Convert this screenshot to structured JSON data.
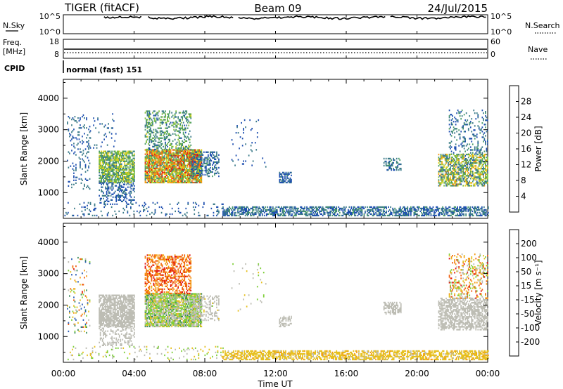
{
  "header": {
    "title": "TIGER (fitACF)",
    "beam": "Beam 09",
    "date": "24/Jul/2015"
  },
  "noise_panel": {
    "left_label": "N.Sky",
    "right_label": "N.Search",
    "left_ticks": [
      "10^5",
      "10^0"
    ],
    "right_ticks": [
      "10^5",
      "10^0"
    ]
  },
  "freq_panel": {
    "left_label_1": "Freq.",
    "left_label_2": "[MHz]",
    "right_label": "Nave",
    "left_ticks": [
      "18",
      "8"
    ],
    "right_ticks": [
      "60",
      "0"
    ]
  },
  "cpid": {
    "label": "CPID",
    "value": "normal (fast) 151"
  },
  "colors": {
    "power": [
      "#0a1be0",
      "#1e4fb0",
      "#3a7a88",
      "#4a9a6a",
      "#7fbe3a",
      "#e0d020",
      "#f59a10",
      "#f06010",
      "#e01010"
    ],
    "velocity": [
      "#e01010",
      "#f06010",
      "#f59a10",
      "#e6c020",
      "#bdbdb4",
      "#7fcf3a",
      "#3a8a5a",
      "#2a5cb4",
      "#1428c8"
    ]
  },
  "chart_data": [
    {
      "type": "heatmap",
      "name": "power",
      "ylabel": "Slant Range [km]",
      "xlim": [
        0,
        24
      ],
      "ylim": [
        180,
        4600
      ],
      "yticks": [
        "1000",
        "2000",
        "3000",
        "4000"
      ],
      "colorbar_label": "Power [dB]",
      "colorbar_ticks": [
        "4",
        "8",
        "12",
        "16",
        "20",
        "24",
        "28"
      ],
      "colorbar_range": [
        0,
        32
      ],
      "regions": [
        {
          "t": [
            0.2,
            1.5
          ],
          "r": [
            1100,
            3500
          ],
          "density": 0.12,
          "value": [
            4,
            10
          ]
        },
        {
          "t": [
            2.0,
            4.0
          ],
          "r": [
            1300,
            2300
          ],
          "density": 0.75,
          "value": [
            8,
            20
          ]
        },
        {
          "t": [
            2.0,
            4.0
          ],
          "r": [
            700,
            1300
          ],
          "density": 0.35,
          "value": [
            4,
            10
          ]
        },
        {
          "t": [
            1.5,
            3.0
          ],
          "r": [
            2400,
            3500
          ],
          "density": 0.06,
          "value": [
            4,
            10
          ]
        },
        {
          "t": [
            4.6,
            7.8
          ],
          "r": [
            1300,
            2350
          ],
          "density": 0.85,
          "value": [
            10,
            30
          ]
        },
        {
          "t": [
            4.6,
            7.2
          ],
          "r": [
            2350,
            3600
          ],
          "density": 0.35,
          "value": [
            6,
            18
          ]
        },
        {
          "t": [
            7.2,
            8.8
          ],
          "r": [
            1500,
            2300
          ],
          "density": 0.4,
          "value": [
            4,
            12
          ]
        },
        {
          "t": [
            9.5,
            11.5
          ],
          "r": [
            1800,
            3300
          ],
          "density": 0.03,
          "value": [
            4,
            8
          ]
        },
        {
          "t": [
            12.2,
            12.9
          ],
          "r": [
            1300,
            1650
          ],
          "density": 0.5,
          "value": [
            4,
            10
          ]
        },
        {
          "t": [
            18.1,
            19.1
          ],
          "r": [
            1700,
            2100
          ],
          "density": 0.45,
          "value": [
            6,
            12
          ]
        },
        {
          "t": [
            21.2,
            24.0
          ],
          "r": [
            1200,
            2200
          ],
          "density": 0.6,
          "value": [
            6,
            24
          ]
        },
        {
          "t": [
            21.8,
            24.0
          ],
          "r": [
            2200,
            3600
          ],
          "density": 0.18,
          "value": [
            4,
            12
          ]
        },
        {
          "t": [
            0.0,
            9.0
          ],
          "r": [
            250,
            700
          ],
          "density": 0.1,
          "value": [
            4,
            10
          ]
        },
        {
          "t": [
            9.0,
            24.0
          ],
          "r": [
            250,
            550
          ],
          "density": 0.55,
          "value": [
            4,
            12
          ]
        }
      ]
    },
    {
      "type": "heatmap",
      "name": "velocity",
      "ylabel": "Slant Range [km]",
      "xlabel": "Time UT",
      "xlim": [
        0,
        24
      ],
      "ylim": [
        180,
        4600
      ],
      "xticks": [
        "00:00",
        "04:00",
        "08:00",
        "12:00",
        "16:00",
        "20:00",
        "00:00"
      ],
      "yticks": [
        "1000",
        "2000",
        "3000",
        "4000"
      ],
      "colorbar_label": "Velocity [m s⁻¹]",
      "colorbar_ticks": [
        "200",
        "100",
        "50",
        "15",
        "-15",
        "-50",
        "-100",
        "-200"
      ],
      "colorbar_range": [
        -250,
        250
      ],
      "regions": [
        {
          "t": [
            0.2,
            1.5
          ],
          "r": [
            1100,
            3500
          ],
          "density": 0.1,
          "value": [
            -200,
            200
          ]
        },
        {
          "t": [
            2.0,
            4.0
          ],
          "r": [
            1300,
            2300
          ],
          "density": 0.75,
          "value": [
            -15,
            15
          ]
        },
        {
          "t": [
            2.0,
            4.0
          ],
          "r": [
            700,
            1300
          ],
          "density": 0.3,
          "value": [
            -15,
            15
          ]
        },
        {
          "t": [
            4.6,
            7.8
          ],
          "r": [
            1300,
            2350
          ],
          "density": 0.85,
          "value": [
            -50,
            100
          ]
        },
        {
          "t": [
            4.6,
            7.2
          ],
          "r": [
            2350,
            3600
          ],
          "density": 0.45,
          "value": [
            -220,
            -80
          ]
        },
        {
          "t": [
            7.2,
            8.8
          ],
          "r": [
            1500,
            2300
          ],
          "density": 0.35,
          "value": [
            -30,
            30
          ]
        },
        {
          "t": [
            9.5,
            11.5
          ],
          "r": [
            1800,
            3300
          ],
          "density": 0.03,
          "value": [
            -50,
            50
          ]
        },
        {
          "t": [
            12.2,
            12.9
          ],
          "r": [
            1300,
            1650
          ],
          "density": 0.5,
          "value": [
            -20,
            20
          ]
        },
        {
          "t": [
            18.1,
            19.1
          ],
          "r": [
            1700,
            2100
          ],
          "density": 0.45,
          "value": [
            -20,
            20
          ]
        },
        {
          "t": [
            21.2,
            24.0
          ],
          "r": [
            1200,
            2200
          ],
          "density": 0.6,
          "value": [
            -20,
            20
          ]
        },
        {
          "t": [
            21.8,
            24.0
          ],
          "r": [
            2200,
            3600
          ],
          "density": 0.25,
          "value": [
            -220,
            80
          ]
        },
        {
          "t": [
            0.0,
            9.0
          ],
          "r": [
            250,
            700
          ],
          "density": 0.08,
          "value": [
            -80,
            80
          ]
        },
        {
          "t": [
            9.0,
            24.0
          ],
          "r": [
            250,
            550
          ],
          "density": 0.6,
          "value": [
            -90,
            -20
          ]
        }
      ]
    }
  ]
}
